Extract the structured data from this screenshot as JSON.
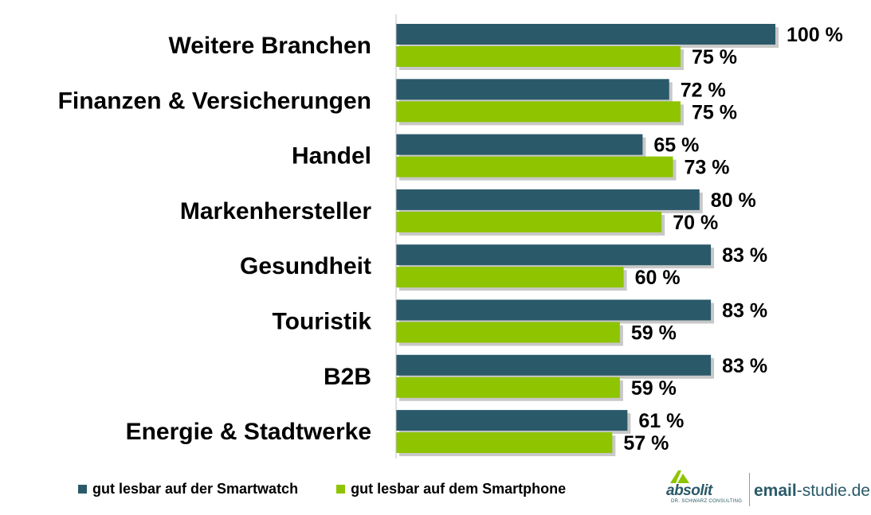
{
  "chart_data": {
    "type": "bar",
    "orientation": "horizontal",
    "categories": [
      "Weitere Branchen",
      "Finanzen & Versicherungen",
      "Handel",
      "Markenhersteller",
      "Gesundheit",
      "Touristik",
      "B2B",
      "Energie & Stadtwerke"
    ],
    "series": [
      {
        "name": "gut lesbar auf der Smartwatch",
        "color": "#2a5a6a",
        "values": [
          100,
          72,
          65,
          80,
          83,
          83,
          83,
          61
        ],
        "labels": [
          "100 %",
          "72 %",
          "65 %",
          "80 %",
          "83 %",
          "83 %",
          "83 %",
          "61 %"
        ]
      },
      {
        "name": "gut lesbar auf dem Smartphone",
        "color": "#8ec400",
        "values": [
          75,
          75,
          73,
          70,
          60,
          59,
          59,
          57
        ],
        "labels": [
          "75 %",
          "75 %",
          "73 %",
          "70 %",
          "60 %",
          "59 %",
          "59 %",
          "57 %"
        ]
      }
    ],
    "xlim": [
      0,
      100
    ],
    "grid": false,
    "legend_position": "bottom-left"
  },
  "legend": {
    "smartwatch": "gut lesbar auf der Smartwatch",
    "smartphone": "gut lesbar auf dem Smartphone",
    "smartwatch_color": "#2a5a6a",
    "smartphone_color": "#8ec400"
  },
  "branding": {
    "logo_name": "absolit",
    "logo_tagline": "DR. SCHWARZ CONSULTING",
    "site_bold": "email",
    "site_rest": "-studie.de"
  }
}
